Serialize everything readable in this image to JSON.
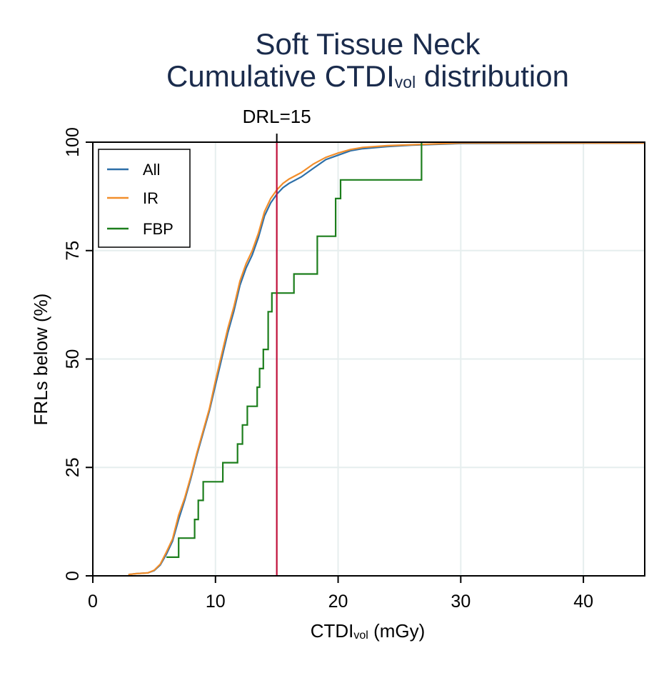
{
  "chart_data": {
    "type": "line",
    "title_line1": "Soft Tissue Neck",
    "title_line2_main": "Cumulative CTDI",
    "title_line2_sub": "vol",
    "title_line2_end": " distribution",
    "xlabel_main": "CTDI",
    "xlabel_sub": "vol",
    "xlabel_end": " (mGy)",
    "ylabel": "FRLs below (%)",
    "xlim": [
      0,
      45
    ],
    "ylim": [
      0,
      100
    ],
    "xticks": [
      0,
      10,
      20,
      30,
      40
    ],
    "yticks": [
      0,
      25,
      50,
      75,
      100
    ],
    "grid": true,
    "legend_position": "top-left",
    "reference_line": {
      "x": 15,
      "label": "DRL=15",
      "color": "#c0103a"
    },
    "series": [
      {
        "name": "All",
        "color": "#2d6fa8",
        "step": false,
        "x": [
          2.9,
          3.5,
          4.5,
          5.0,
          5.5,
          6.0,
          6.5,
          7.0,
          7.5,
          8.0,
          8.5,
          9.0,
          9.5,
          10.0,
          10.5,
          11.0,
          11.5,
          12.0,
          12.5,
          13.0,
          13.5,
          14.0,
          14.5,
          15.0,
          15.5,
          16.0,
          17.0,
          18.0,
          19.0,
          20.0,
          21.0,
          22.0,
          24.0,
          26.0,
          28.0,
          30.0,
          45.0
        ],
        "y": [
          0.3,
          0.5,
          0.7,
          1.2,
          2.5,
          5.0,
          8.0,
          13.0,
          17.5,
          22.5,
          28.0,
          33.0,
          38.0,
          44.0,
          50.0,
          56.0,
          61.0,
          67.0,
          71.0,
          74.0,
          78.0,
          83.0,
          86.0,
          88.0,
          89.5,
          90.5,
          92.0,
          94.0,
          96.0,
          97.0,
          98.0,
          98.5,
          99.0,
          99.3,
          99.5,
          99.7,
          99.8
        ]
      },
      {
        "name": "IR",
        "color": "#f28e2b",
        "step": false,
        "x": [
          2.9,
          3.5,
          4.5,
          5.0,
          5.5,
          6.0,
          6.5,
          7.0,
          7.5,
          8.0,
          8.5,
          9.0,
          9.5,
          10.0,
          10.5,
          11.0,
          11.5,
          12.0,
          12.5,
          13.0,
          13.5,
          14.0,
          14.5,
          15.0,
          15.5,
          16.0,
          17.0,
          18.0,
          19.0,
          20.0,
          21.0,
          22.0,
          24.0,
          26.0,
          28.0,
          30.0,
          45.0
        ],
        "y": [
          0.3,
          0.5,
          0.7,
          1.3,
          2.7,
          5.5,
          8.5,
          14.0,
          18.0,
          23.0,
          28.5,
          33.5,
          38.5,
          45.0,
          51.0,
          57.0,
          62.0,
          68.0,
          72.0,
          75.0,
          79.0,
          84.0,
          87.0,
          89.0,
          90.5,
          91.5,
          93.0,
          95.0,
          96.5,
          97.5,
          98.3,
          98.8,
          99.2,
          99.4,
          99.6,
          99.8,
          99.8
        ]
      },
      {
        "name": "FBP",
        "color": "#1c7e1c",
        "step": true,
        "x": [
          6.0,
          7.0,
          8.3,
          8.6,
          9.0,
          10.6,
          11.8,
          12.2,
          12.6,
          13.4,
          13.6,
          13.9,
          14.3,
          14.6,
          16.4,
          18.3,
          19.8,
          20.2,
          26.8
        ],
        "y": [
          4.3,
          8.7,
          13.0,
          17.4,
          21.7,
          26.1,
          30.4,
          34.8,
          39.1,
          43.5,
          47.8,
          52.2,
          60.9,
          65.2,
          69.6,
          78.3,
          87.0,
          91.3,
          95.7
        ],
        "x_end": 26.8,
        "y_end": 100.0
      }
    ]
  }
}
